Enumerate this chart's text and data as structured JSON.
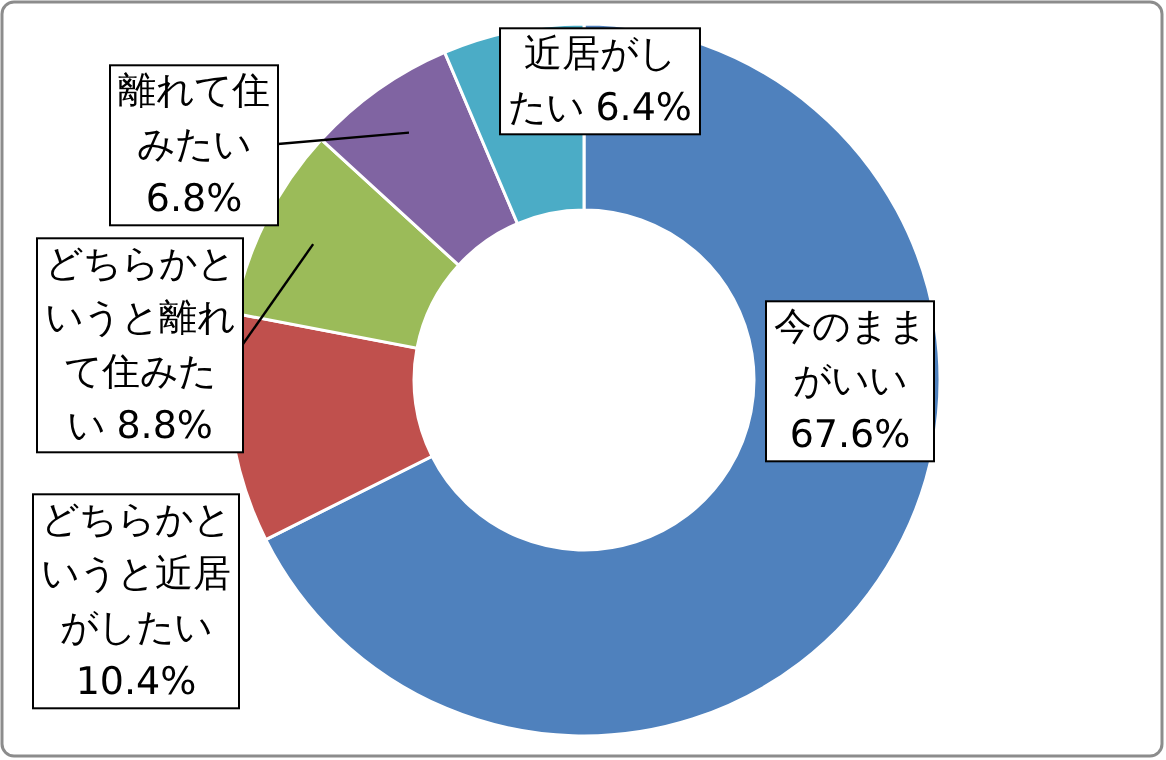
{
  "chart_data": {
    "type": "donut",
    "categories": [
      "今のままがいい",
      "どちらかというと近居がしたい",
      "どちらかというと離れて住みたい",
      "離れて住みたい",
      "近居がしたい"
    ],
    "values": [
      67.6,
      10.4,
      8.8,
      6.8,
      6.4
    ],
    "colors": [
      "#4f81bd",
      "#c0504d",
      "#9bbb59",
      "#8064a2",
      "#4bacc6"
    ],
    "value_labels": [
      "67.6%",
      "10.4%",
      "8.8%",
      "6.8%",
      "6.4%"
    ]
  }
}
